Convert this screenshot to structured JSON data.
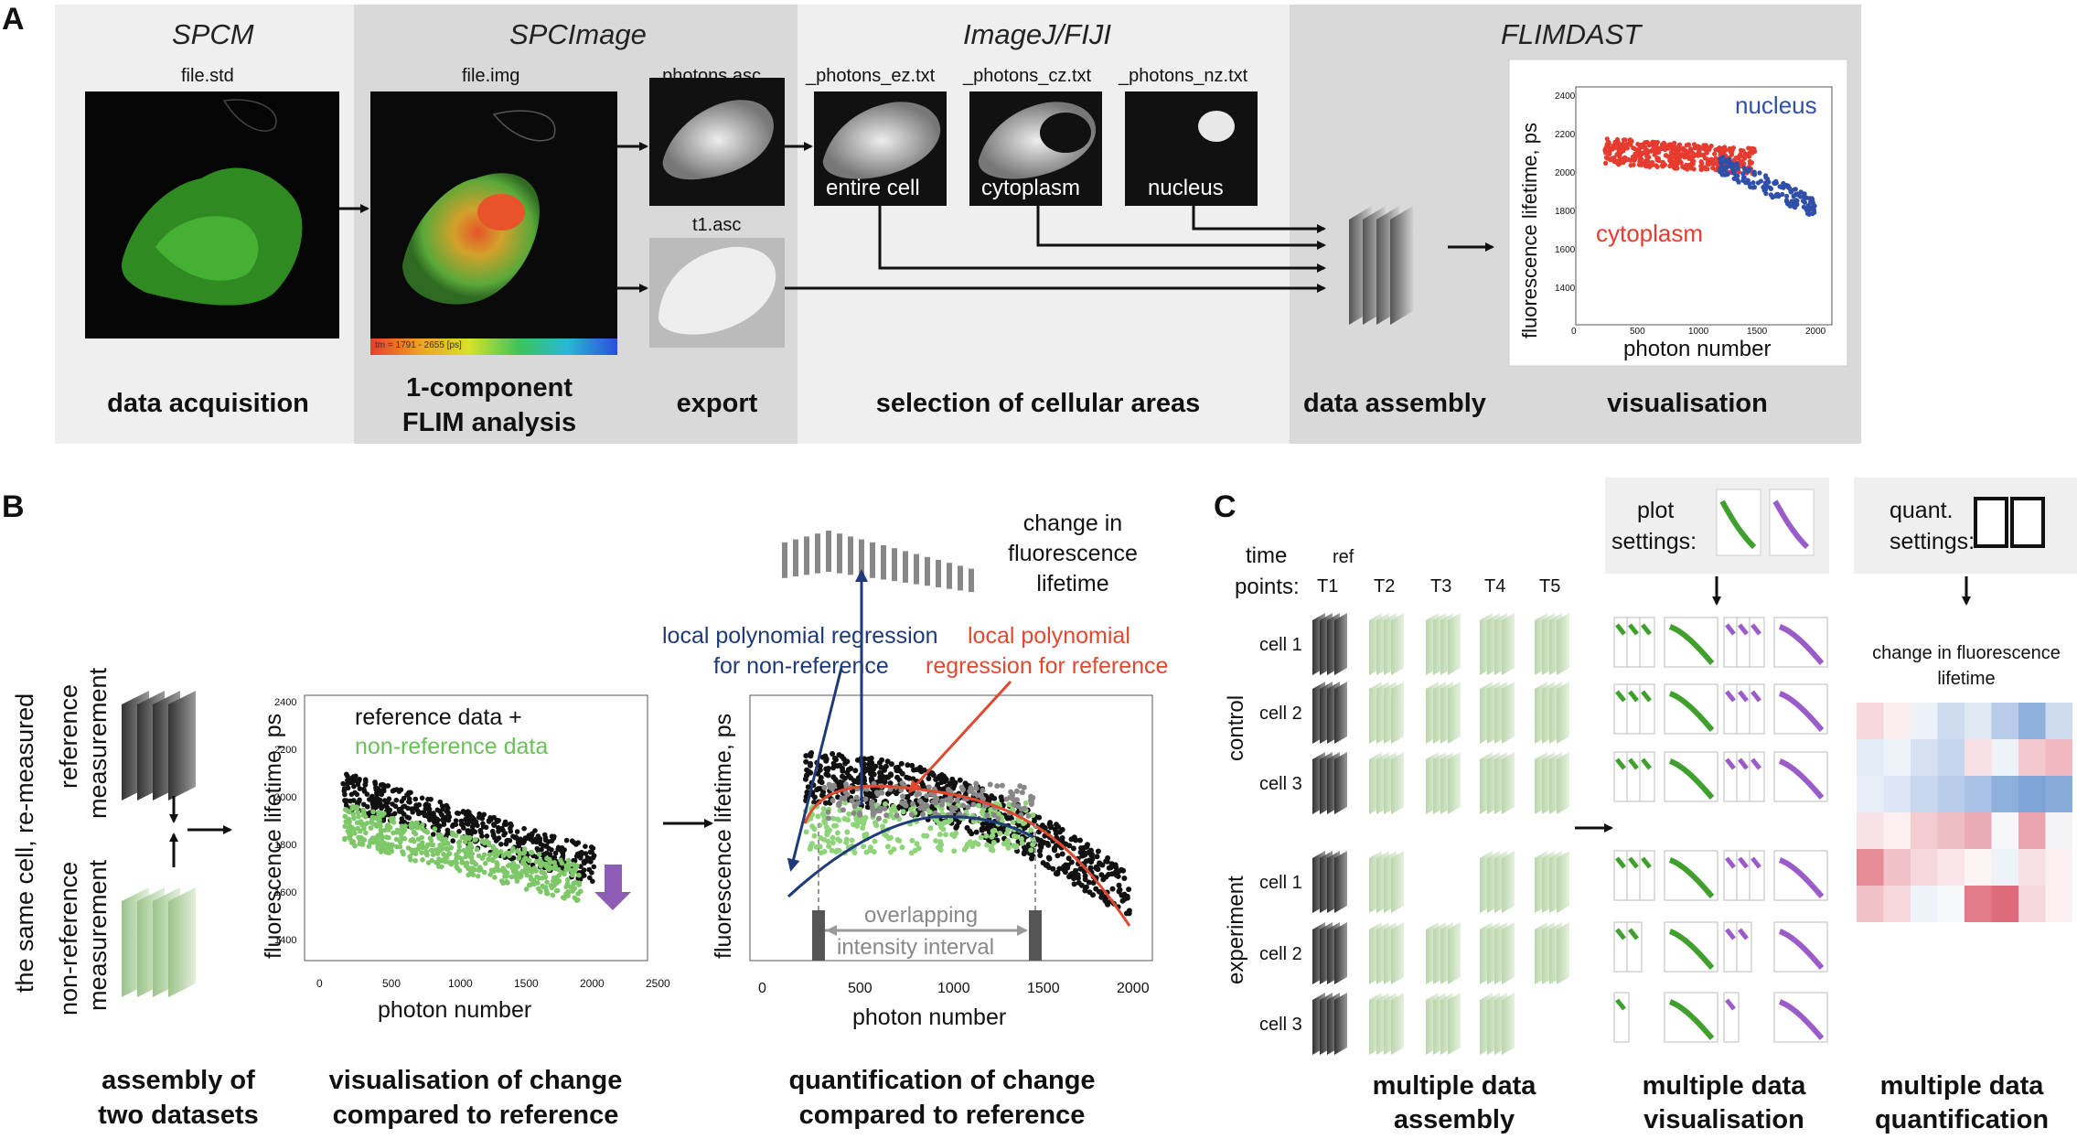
{
  "panel_labels": {
    "a": "A",
    "b": "B",
    "c": "C"
  },
  "panel_a": {
    "sections": [
      "SPCM",
      "SPCImage",
      "ImageJ/FIJI",
      "FLIMDAST"
    ],
    "files": [
      "file.std",
      "file.img",
      "_photons.asc",
      "t1.asc",
      "_photons_ez.txt",
      "_photons_cz.txt",
      "_photons_nz.txt"
    ],
    "image_labels": {
      "entire": "entire cell",
      "cyto": "cytoplasm",
      "nucleus": "nucleus"
    },
    "colorbar_text": "tm = 1791 - 2655 [ps]",
    "captions": {
      "acq": "data acquisition",
      "flim1": "1-component",
      "flim2": "FLIM analysis",
      "export": "export",
      "selection": "selection of cellular areas",
      "assembly": "data assembly",
      "vis": "visualisation"
    },
    "plot": {
      "ylabel": "fluorescence lifetime, ps",
      "xlabel": "photon number",
      "nucleus": "nucleus",
      "cytoplasm": "cytoplasm",
      "yticks": [
        "2400",
        "2200",
        "2000",
        "1800",
        "1600",
        "1400"
      ],
      "xticks": [
        "0",
        "500",
        "1000",
        "1500",
        "2000"
      ]
    }
  },
  "panel_b": {
    "side1": "the same cell, re-measured",
    "ref_meas1": "reference",
    "ref_meas2": "measurement",
    "nonref_meas1": "non-reference",
    "nonref_meas2": "measurement",
    "plot1": {
      "legend1": "reference data +",
      "legend2": "non-reference data",
      "ylabel": "fluorescence lifetime, ps",
      "xlabel": "photon number",
      "yticks": [
        "2400",
        "2200",
        "2000",
        "1800",
        "1600",
        "1400"
      ],
      "xticks": [
        "0",
        "500",
        "1000",
        "1500",
        "2000",
        "2500"
      ]
    },
    "plot2": {
      "change1": "change in",
      "change2": "fluorescence",
      "change3": "lifetime",
      "nonref_reg1": "local polynomial regression",
      "nonref_reg2": "for non-reference",
      "ref_reg1": "local polynomial",
      "ref_reg2": "regression for reference",
      "overlap1": "overlapping",
      "overlap2": "intensity interval",
      "ylabel": "fluorescence lifetime, ps",
      "xlabel": "photon number",
      "xticks": [
        "0",
        "500",
        "1000",
        "1500",
        "2000"
      ]
    },
    "captions": {
      "c1a": "assembly of",
      "c1b": "two datasets",
      "c2a": "visualisation of change",
      "c2b": "compared to reference",
      "c3a": "quantification of change",
      "c3b": "compared to reference"
    }
  },
  "panel_c": {
    "time_label1": "time",
    "time_label2": "points:",
    "ref": "ref",
    "timepoints": [
      "T1",
      "T2",
      "T3",
      "T4",
      "T5"
    ],
    "groups": [
      "control",
      "experiment"
    ],
    "cells": [
      "cell 1",
      "cell 2",
      "cell 3"
    ],
    "plot_settings1": "plot",
    "plot_settings2": "settings:",
    "quant_settings1": "quant.",
    "quant_settings2": "settings:",
    "heatmap_title1": "change in fluorescence",
    "heatmap_title2": "lifetime",
    "captions": {
      "c1a": "multiple data",
      "c1b": "assembly",
      "c2a": "multiple data",
      "c2b": "visualisation",
      "c3a": "multiple data",
      "c3b": "quantification"
    }
  },
  "colors": {
    "nucleus_blue": "#2f4fa8",
    "cytoplasm_red": "#e63b2e",
    "nonref_green": "#7ec86a",
    "regression_blue": "#1f3a7a",
    "regression_red": "#e0492f",
    "arrow_purple": "#8e5bb5",
    "panel_bg": "#efefef"
  }
}
